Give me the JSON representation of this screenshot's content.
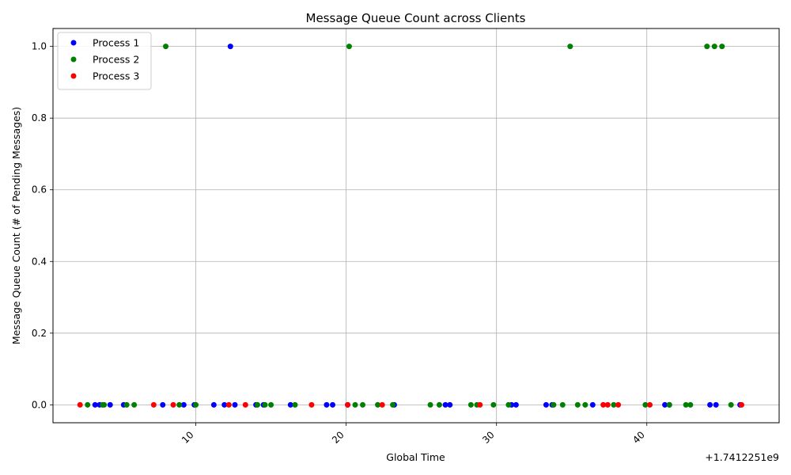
{
  "chart_data": {
    "type": "scatter",
    "title": "Message Queue Count across Clients",
    "xlabel": "Global Time",
    "ylabel": "Message Queue Count (# of Pending Messages)",
    "x_offset_label": "+1.7412251e9",
    "xlim": [
      0.5,
      48.8
    ],
    "ylim": [
      -0.05,
      1.05
    ],
    "x_ticks": [
      10,
      20,
      30,
      40
    ],
    "y_ticks": [
      0.0,
      0.2,
      0.4,
      0.6,
      0.8,
      1.0
    ],
    "x_tick_labels": [
      "10",
      "20",
      "30",
      "40"
    ],
    "y_tick_labels": [
      "0.0",
      "0.2",
      "0.4",
      "0.6",
      "0.8",
      "1.0"
    ],
    "grid": true,
    "legend_position": "upper-left",
    "series": [
      {
        "name": "Process 1",
        "color": "#0000ff",
        "points": [
          [
            3.3,
            0
          ],
          [
            3.6,
            0
          ],
          [
            4.3,
            0
          ],
          [
            5.2,
            0
          ],
          [
            7.8,
            0
          ],
          [
            9.2,
            0
          ],
          [
            9.9,
            0
          ],
          [
            11.2,
            0
          ],
          [
            11.9,
            0
          ],
          [
            12.3,
            1
          ],
          [
            12.6,
            0
          ],
          [
            14.0,
            0
          ],
          [
            14.5,
            0
          ],
          [
            16.3,
            0
          ],
          [
            18.7,
            0
          ],
          [
            19.1,
            0
          ],
          [
            20.1,
            0
          ],
          [
            23.2,
            0
          ],
          [
            26.6,
            0
          ],
          [
            26.9,
            0
          ],
          [
            31.0,
            0
          ],
          [
            31.3,
            0
          ],
          [
            33.3,
            0
          ],
          [
            33.7,
            0
          ],
          [
            36.4,
            0
          ],
          [
            41.2,
            0
          ],
          [
            41.5,
            0
          ],
          [
            44.2,
            0
          ],
          [
            44.6,
            0
          ],
          [
            46.2,
            0
          ]
        ]
      },
      {
        "name": "Process 2",
        "color": "#008000",
        "points": [
          [
            2.8,
            0
          ],
          [
            3.8,
            0
          ],
          [
            3.9,
            0
          ],
          [
            5.4,
            0
          ],
          [
            5.9,
            0
          ],
          [
            8.0,
            1
          ],
          [
            8.9,
            0
          ],
          [
            10.0,
            0
          ],
          [
            14.1,
            0
          ],
          [
            14.6,
            0
          ],
          [
            15.0,
            0
          ],
          [
            16.6,
            0
          ],
          [
            20.2,
            1
          ],
          [
            20.6,
            0
          ],
          [
            21.1,
            0
          ],
          [
            22.1,
            0
          ],
          [
            23.1,
            0
          ],
          [
            25.6,
            0
          ],
          [
            26.2,
            0
          ],
          [
            28.3,
            0
          ],
          [
            28.7,
            0
          ],
          [
            29.8,
            0
          ],
          [
            30.8,
            0
          ],
          [
            33.8,
            0
          ],
          [
            34.4,
            0
          ],
          [
            34.9,
            1
          ],
          [
            35.4,
            0
          ],
          [
            35.9,
            0
          ],
          [
            37.8,
            0
          ],
          [
            39.9,
            0
          ],
          [
            41.5,
            0
          ],
          [
            42.6,
            0
          ],
          [
            42.9,
            0
          ],
          [
            44.0,
            1
          ],
          [
            44.5,
            1
          ],
          [
            45.0,
            1
          ],
          [
            45.6,
            0
          ]
        ]
      },
      {
        "name": "Process 3",
        "color": "#ff0000",
        "points": [
          [
            2.3,
            0
          ],
          [
            7.2,
            0
          ],
          [
            8.5,
            0
          ],
          [
            12.2,
            0
          ],
          [
            13.3,
            0
          ],
          [
            17.7,
            0
          ],
          [
            20.1,
            0
          ],
          [
            22.4,
            0
          ],
          [
            28.9,
            0
          ],
          [
            37.1,
            0
          ],
          [
            37.4,
            0
          ],
          [
            38.1,
            0
          ],
          [
            40.2,
            0
          ],
          [
            46.3,
            0
          ]
        ]
      }
    ]
  }
}
